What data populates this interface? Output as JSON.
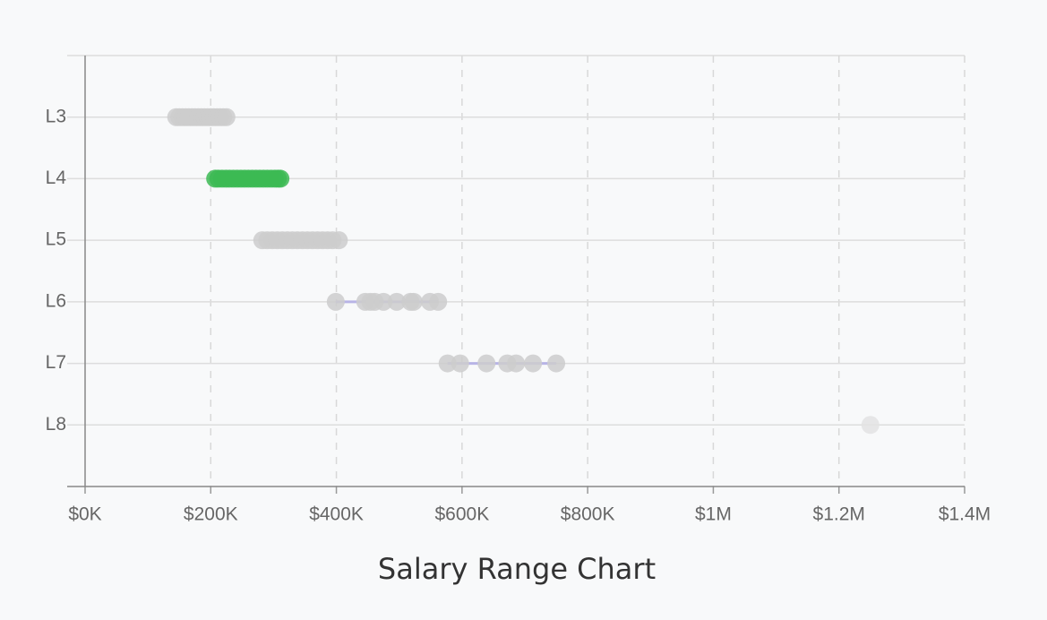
{
  "chart_data": {
    "type": "strip",
    "title": "Salary Range Chart",
    "xlim": [
      0,
      1400000
    ],
    "xticks": [
      {
        "value": 0,
        "label": "$0K"
      },
      {
        "value": 200000,
        "label": "$200K"
      },
      {
        "value": 400000,
        "label": "$400K"
      },
      {
        "value": 600000,
        "label": "$600K"
      },
      {
        "value": 800000,
        "label": "$800K"
      },
      {
        "value": 1000000,
        "label": "$1M"
      },
      {
        "value": 1200000,
        "label": "$1.2M"
      },
      {
        "value": 1400000,
        "label": "$1.4M"
      }
    ],
    "grid": true,
    "groups": [
      {
        "category": "L3",
        "color": "#cccccc",
        "values": [
          145000,
          150000,
          155000,
          160000,
          165000,
          170000,
          175000,
          180000,
          185000,
          190000,
          195000,
          200000,
          205000,
          210000,
          215000,
          220000,
          225000
        ]
      },
      {
        "category": "L4",
        "color": "#3cba54",
        "values": [
          207000,
          212000,
          218000,
          224000,
          230000,
          236000,
          242000,
          248000,
          254000,
          260000,
          266000,
          272000,
          278000,
          284000,
          290000,
          296000,
          302000,
          307000,
          311000
        ]
      },
      {
        "category": "L5",
        "color": "#cccccc",
        "values": [
          282000,
          290000,
          298000,
          306000,
          314000,
          322000,
          330000,
          338000,
          346000,
          354000,
          362000,
          370000,
          378000,
          386000,
          394000,
          404000
        ]
      },
      {
        "category": "L6",
        "color": "#cccccc",
        "line_color": "#b8b4e6",
        "values": [
          399000,
          446000,
          454000,
          461000,
          475000,
          496000,
          518000,
          523000,
          549000,
          562000
        ]
      },
      {
        "category": "L7",
        "color": "#cccccc",
        "line_color": "#b8b4e6",
        "values": [
          577000,
          597000,
          639000,
          672000,
          686000,
          713000,
          750000
        ]
      },
      {
        "category": "L8",
        "color": "#e3e3e3",
        "values": [
          1250000
        ]
      }
    ]
  }
}
